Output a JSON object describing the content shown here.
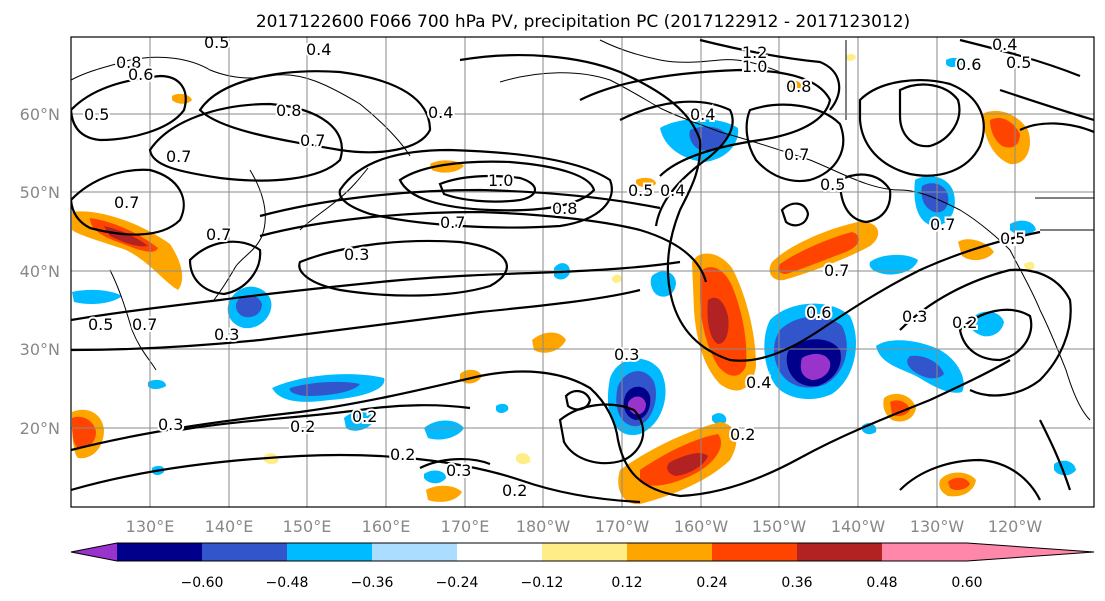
{
  "title": "2017122600 F066 700 hPa PV, precipitation PC (2017122912 - 2017123012)",
  "lat_labels": [
    "60°N",
    "50°N",
    "40°N",
    "30°N",
    "20°N"
  ],
  "lon_labels": [
    "130°E",
    "140°E",
    "150°E",
    "160°E",
    "170°E",
    "180°W",
    "170°W",
    "160°W",
    "150°W",
    "140°W",
    "130°W",
    "120°W"
  ],
  "map_extent": {
    "lon_min": 120,
    "lon_max": 250,
    "lat_min": 10,
    "lat_max": 70
  },
  "colorbar": {
    "ticks": [
      "−0.60",
      "−0.48",
      "−0.36",
      "−0.24",
      "−0.12",
      "0.12",
      "0.24",
      "0.36",
      "0.48",
      "0.60"
    ],
    "colors": [
      "#9933cc",
      "#00008b",
      "#3355cc",
      "#00bbff",
      "#aaddff",
      "#ffffff",
      "#ffee88",
      "#ffa500",
      "#ff4400",
      "#b22222",
      "#ff88aa"
    ]
  },
  "contour_labels": [
    {
      "text": "0.4"
    },
    {
      "text": "0.8"
    },
    {
      "text": "0.6"
    },
    {
      "text": "0.5"
    },
    {
      "text": "0.4"
    },
    {
      "text": "1.2"
    },
    {
      "text": "1.0"
    },
    {
      "text": "0.8"
    },
    {
      "text": "0.4"
    },
    {
      "text": "0.6"
    },
    {
      "text": "0.5"
    },
    {
      "text": "0.5"
    },
    {
      "text": "0.8"
    },
    {
      "text": "0.7"
    },
    {
      "text": "0.4"
    },
    {
      "text": "0.7"
    },
    {
      "text": "0.7"
    },
    {
      "text": "0.7"
    },
    {
      "text": "1.0"
    },
    {
      "text": "0.5"
    },
    {
      "text": "0.4"
    },
    {
      "text": "0.7"
    },
    {
      "text": "0.5"
    },
    {
      "text": "0.8"
    },
    {
      "text": "0.7"
    },
    {
      "text": "0.7"
    },
    {
      "text": "0.3"
    },
    {
      "text": "0.5"
    },
    {
      "text": "0.7"
    },
    {
      "text": "0.3"
    },
    {
      "text": "0.3"
    },
    {
      "text": "0.6"
    },
    {
      "text": "0.7"
    },
    {
      "text": "0.3"
    },
    {
      "text": "0.2"
    },
    {
      "text": "0.4"
    },
    {
      "text": "0.3"
    },
    {
      "text": "0.2"
    },
    {
      "text": "0.2"
    },
    {
      "text": "0.3"
    },
    {
      "text": "0.2"
    },
    {
      "text": "0.2"
    },
    {
      "text": "0.2"
    },
    {
      "text": "0.5"
    }
  ]
}
